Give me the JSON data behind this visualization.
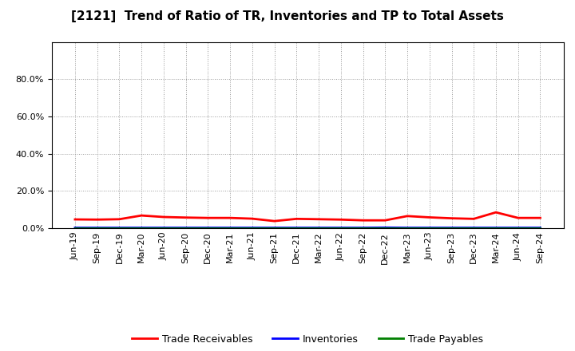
{
  "title": "[2121]  Trend of Ratio of TR, Inventories and TP to Total Assets",
  "background_color": "#ffffff",
  "plot_background_color": "#ffffff",
  "grid_color": "#999999",
  "x_labels": [
    "Jun-19",
    "Sep-19",
    "Dec-19",
    "Mar-20",
    "Jun-20",
    "Sep-20",
    "Dec-20",
    "Mar-21",
    "Jun-21",
    "Sep-21",
    "Dec-21",
    "Mar-22",
    "Jun-22",
    "Sep-22",
    "Dec-22",
    "Mar-23",
    "Jun-23",
    "Sep-23",
    "Dec-23",
    "Mar-24",
    "Jun-24",
    "Sep-24"
  ],
  "trade_receivables": [
    0.047,
    0.046,
    0.048,
    0.068,
    0.06,
    0.057,
    0.055,
    0.055,
    0.051,
    0.038,
    0.05,
    0.048,
    0.046,
    0.042,
    0.042,
    0.065,
    0.058,
    0.053,
    0.05,
    0.085,
    0.055,
    0.055
  ],
  "inventories": [
    0.002,
    0.002,
    0.002,
    0.002,
    0.002,
    0.002,
    0.002,
    0.002,
    0.002,
    0.002,
    0.002,
    0.002,
    0.002,
    0.002,
    0.003,
    0.002,
    0.002,
    0.002,
    0.002,
    0.002,
    0.002,
    0.002
  ],
  "trade_payables": [
    0.001,
    0.001,
    0.001,
    0.001,
    0.001,
    0.001,
    0.001,
    0.001,
    0.001,
    0.001,
    0.001,
    0.001,
    0.001,
    0.001,
    0.001,
    0.001,
    0.001,
    0.001,
    0.001,
    0.001,
    0.001,
    0.001
  ],
  "tr_color": "#ff0000",
  "inv_color": "#0000ff",
  "tp_color": "#008000",
  "tr_label": "Trade Receivables",
  "inv_label": "Inventories",
  "tp_label": "Trade Payables",
  "line_width": 2.0,
  "title_fontsize": 11,
  "legend_fontsize": 9,
  "tick_fontsize": 8,
  "ylim_max": 1.0,
  "yticks": [
    0.0,
    0.2,
    0.4,
    0.6,
    0.8
  ]
}
